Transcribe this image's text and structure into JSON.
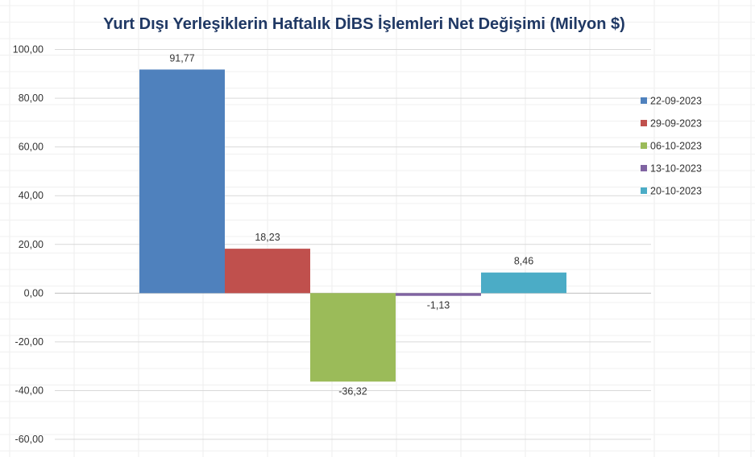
{
  "chart_data": {
    "type": "bar",
    "title": "Yurt Dışı Yerleşiklerin Haftalık DİBS İşlemleri Net Değişimi (Milyon $)",
    "xlabel": "",
    "ylabel": "",
    "ylim": [
      -60,
      100
    ],
    "yticks": [
      100,
      80,
      60,
      40,
      20,
      0,
      -20,
      -40,
      -60
    ],
    "ytick_labels": [
      "100,00",
      "80,00",
      "60,00",
      "40,00",
      "20,00",
      "0,00",
      "-20,00",
      "-40,00",
      "-60,00"
    ],
    "grid": true,
    "legend_position": "right",
    "series": [
      {
        "name": "22-09-2023",
        "value": 91.77,
        "label": "91,77",
        "color": "#4f81bd"
      },
      {
        "name": "29-09-2023",
        "value": 18.23,
        "label": "18,23",
        "color": "#c0504d"
      },
      {
        "name": "06-10-2023",
        "value": -36.32,
        "label": "-36,32",
        "color": "#9bbb59"
      },
      {
        "name": "13-10-2023",
        "value": -1.13,
        "label": "-1,13",
        "color": "#8064a2"
      },
      {
        "name": "20-10-2023",
        "value": 8.46,
        "label": "8,46",
        "color": "#4bacc6"
      }
    ]
  }
}
